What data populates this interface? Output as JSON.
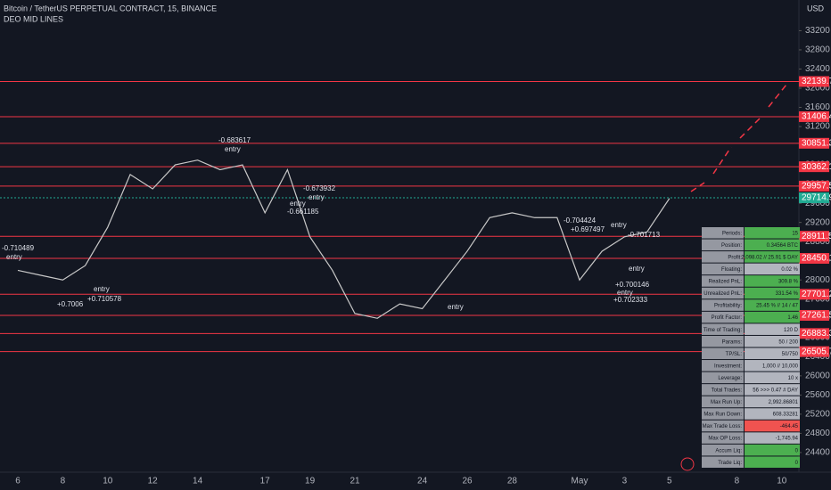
{
  "header": {
    "symbol": "Bitcoin / TetherUS PERPETUAL CONTRACT, 15, BINANCE",
    "indicator": "DEO MID LINES",
    "currency": "USD"
  },
  "chart_data": {
    "type": "line",
    "color": "#c8c8c8",
    "categories": [
      "6",
      null,
      "8",
      null,
      "10",
      null,
      "12",
      null,
      "14",
      null,
      null,
      "17",
      null,
      "19",
      null,
      "21",
      null,
      null,
      "24",
      null,
      "26",
      null,
      "28",
      null,
      null,
      "May",
      null,
      "3",
      null,
      "5",
      null,
      null,
      "8",
      null,
      "10"
    ],
    "values": [
      28200,
      28100,
      28000,
      28300,
      29100,
      30200,
      29900,
      30400,
      30500,
      30300,
      30400,
      29400,
      30300,
      28900,
      28200,
      27300,
      27200,
      27500,
      27400,
      28000,
      28600,
      29300,
      29400,
      29300,
      29300,
      28000,
      28600,
      28900,
      29000,
      29700,
      null,
      null,
      null,
      null,
      null
    ],
    "ylim": [
      23990,
      33840
    ],
    "yticks": [
      24400,
      24800,
      25200,
      25600,
      26000,
      26400,
      26800,
      27200,
      27600,
      28000,
      28400,
      28800,
      29200,
      29600,
      30000,
      30400,
      30800,
      31200,
      31600,
      32000,
      32400,
      32800,
      33200
    ],
    "levels": [
      32139.7,
      31406.4,
      30851.3,
      30362.1,
      29957.5,
      28911.5,
      28450.1,
      27701.2,
      27261.5,
      26883.3,
      26505.7
    ],
    "level_color": "#f23645",
    "last_price": 29714.9,
    "last_color": "#22ab94",
    "annotations": [
      "-0.710489",
      "entry",
      "-0.683617",
      "entry",
      "-0.673932",
      "entry",
      "entry",
      "-0.661185",
      "entry",
      "+0.710578",
      "entry",
      "+0.697497",
      "-0.704424",
      "entry",
      "-0.701713",
      "entry",
      "+0.700146",
      "entry",
      "+0.702333",
      "+0.7006"
    ]
  },
  "table": {
    "rows": [
      [
        "Periods:",
        "15"
      ],
      [
        "Position:",
        "0.34564 BTC"
      ],
      [
        "Profit:",
        "2,098.02 // 25.91 $ DAY"
      ],
      [
        "Floating:",
        "0.02 %"
      ],
      [
        "Realized PnL:",
        "309.8 %"
      ],
      [
        "Unrealized PnL:",
        "331.54 %"
      ],
      [
        "Profitability:",
        "25.45 % // 14 / 47"
      ],
      [
        "Profit Factor:",
        "1.46"
      ],
      [
        "Time of Trading:",
        "120 D"
      ],
      [
        "Params:",
        "50 / 200"
      ],
      [
        "TP/SL:",
        "50/750"
      ],
      [
        "Investment:",
        "1,000 // 10,000"
      ],
      [
        "Leverage:",
        "10 x"
      ],
      [
        "Total Trades:",
        "56 >>> 0.47 # DAY"
      ],
      [
        "Max Run Up:",
        "2,992.86801"
      ],
      [
        "Max Run Down:",
        "608.33281"
      ],
      [
        "Max Trade Loss:",
        "-464.45"
      ],
      [
        "Max OP Loss:",
        "-1,745.94"
      ],
      [
        "Accum Liq:",
        "0"
      ],
      [
        "Trade Liq:",
        "0"
      ]
    ]
  }
}
